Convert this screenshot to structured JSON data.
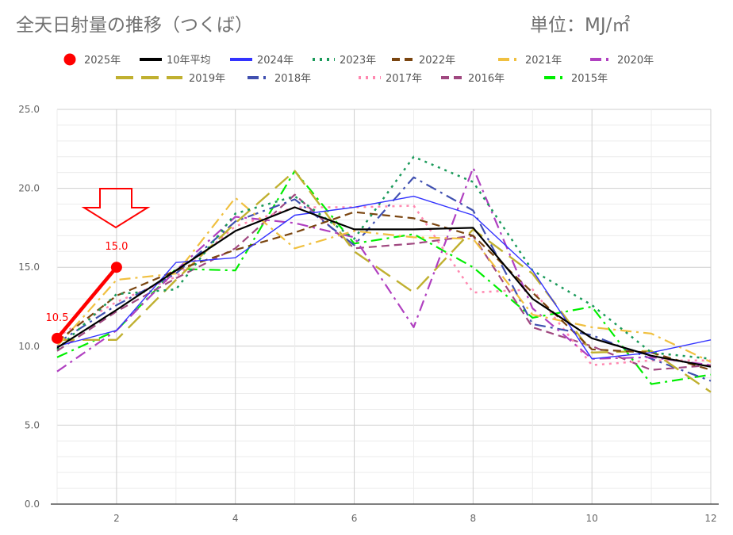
{
  "header": {
    "title": "全天日射量の推移（つくば）",
    "unit": "単位：MJ/㎡"
  },
  "colors": {
    "accent": "#ff0000",
    "grid": "#e0e0e0",
    "axis": "#333333"
  },
  "chart_data": {
    "type": "line",
    "title": "全天日射量の推移（つくば）",
    "xlabel": "",
    "ylabel": "",
    "xlim": [
      1,
      12
    ],
    "ylim": [
      0,
      25
    ],
    "x_ticks": [
      2,
      4,
      6,
      8,
      10,
      12
    ],
    "y_ticks": [
      "0.0",
      "5.0",
      "10.0",
      "15.0",
      "20.0",
      "25.0"
    ],
    "grid": true,
    "legend_position": "top",
    "annotations": [
      {
        "text": "10.5",
        "x": 1,
        "y": 10.5
      },
      {
        "text": "15.0",
        "x": 2,
        "y": 15.0
      }
    ],
    "series": [
      {
        "name": "2025年",
        "color": "#ff0000",
        "style": "solid-thick-markers",
        "x": [
          1,
          2
        ],
        "values": [
          10.5,
          15.0
        ]
      },
      {
        "name": "10年平均",
        "color": "#000000",
        "style": "solid",
        "x": [
          1,
          2,
          3,
          4,
          5,
          6,
          7,
          8,
          9,
          10,
          11,
          12
        ],
        "values": [
          9.9,
          12.3,
          14.8,
          17.3,
          18.8,
          17.4,
          17.4,
          17.5,
          13.0,
          10.5,
          9.4,
          8.7
        ]
      },
      {
        "name": "2024年",
        "color": "#3333ff",
        "style": "solid",
        "x": [
          1,
          2,
          3,
          4,
          5,
          6,
          7,
          8,
          9,
          10,
          11,
          12
        ],
        "values": [
          10.0,
          11.0,
          15.3,
          15.6,
          18.3,
          18.8,
          19.5,
          18.3,
          14.8,
          9.2,
          9.6,
          10.4
        ]
      },
      {
        "name": "2023年",
        "color": "#1a9a5a",
        "style": "dotted",
        "x": [
          1,
          2,
          3,
          4,
          5,
          6,
          7,
          8,
          9,
          10,
          11,
          12
        ],
        "values": [
          9.8,
          13.3,
          13.6,
          18.4,
          19.5,
          16.8,
          22.0,
          20.4,
          14.8,
          12.6,
          9.6,
          9.2
        ]
      },
      {
        "name": "2022年",
        "color": "#7a4510",
        "style": "dashed",
        "x": [
          1,
          2,
          3,
          4,
          5,
          6,
          7,
          8,
          9,
          10,
          11,
          12
        ],
        "values": [
          10.3,
          13.2,
          14.8,
          16.1,
          17.2,
          18.5,
          18.1,
          17.0,
          13.4,
          9.8,
          9.6,
          8.5
        ]
      },
      {
        "name": "2021年",
        "color": "#f0c040",
        "style": "dashdot",
        "x": [
          1,
          2,
          3,
          4,
          5,
          6,
          7,
          8,
          9,
          10,
          11,
          12
        ],
        "values": [
          10.0,
          14.2,
          14.6,
          19.4,
          16.2,
          17.3,
          16.9,
          16.8,
          12.0,
          11.2,
          10.8,
          9.0
        ]
      },
      {
        "name": "2020年",
        "color": "#b040c0",
        "style": "dashdot",
        "x": [
          1,
          2,
          3,
          4,
          5,
          6,
          7,
          8,
          9,
          10,
          11,
          12
        ],
        "values": [
          8.4,
          11.0,
          14.8,
          18.2,
          17.8,
          16.9,
          11.2,
          21.3,
          12.4,
          9.2,
          9.3,
          8.8
        ]
      },
      {
        "name": "2019年",
        "color": "#c0b030",
        "style": "longdash",
        "x": [
          1,
          2,
          3,
          4,
          5,
          6,
          7,
          8,
          9,
          10,
          11,
          12
        ],
        "values": [
          10.4,
          10.4,
          14.2,
          17.8,
          21.1,
          16.0,
          13.4,
          17.4,
          14.6,
          9.6,
          9.7,
          7.1
        ]
      },
      {
        "name": "2018年",
        "color": "#4050b0",
        "style": "dashdot",
        "x": [
          1,
          2,
          3,
          4,
          5,
          6,
          7,
          8,
          9,
          10,
          11,
          12
        ],
        "values": [
          10.2,
          12.6,
          14.6,
          17.9,
          19.3,
          16.4,
          20.7,
          18.6,
          11.4,
          10.7,
          9.2,
          7.8
        ]
      },
      {
        "name": "2017年",
        "color": "#ff88b0",
        "style": "dotted",
        "x": [
          1,
          2,
          3,
          4,
          5,
          6,
          7,
          8,
          9,
          10,
          11,
          12
        ],
        "values": [
          10.6,
          12.8,
          14.4,
          17.6,
          18.8,
          18.8,
          18.9,
          13.4,
          13.6,
          8.8,
          9.1,
          9.1
        ]
      },
      {
        "name": "2016年",
        "color": "#a04880",
        "style": "dashed",
        "x": [
          1,
          2,
          3,
          4,
          5,
          6,
          7,
          8,
          9,
          10,
          11,
          12
        ],
        "values": [
          9.7,
          12.2,
          14.3,
          16.2,
          19.6,
          16.2,
          16.5,
          17.0,
          11.2,
          10.0,
          8.5,
          8.8
        ]
      },
      {
        "name": "2015年",
        "color": "#00ee00",
        "style": "dashdot",
        "x": [
          1,
          2,
          3,
          4,
          5,
          6,
          7,
          8,
          9,
          10,
          11,
          12
        ],
        "values": [
          9.3,
          11.0,
          14.9,
          14.8,
          21.1,
          16.5,
          17.1,
          15.0,
          11.8,
          12.5,
          7.6,
          8.2
        ]
      }
    ]
  }
}
